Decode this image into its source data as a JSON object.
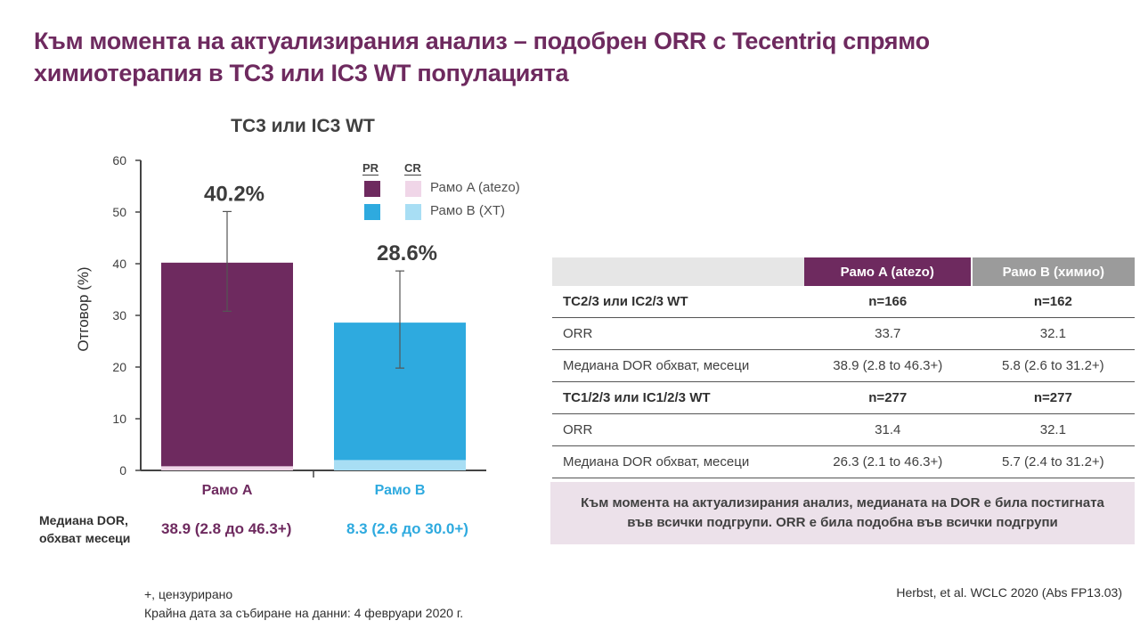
{
  "title": "Към момента на актуализирания анализ – подобрен ORR с Tecentriq спрямо химиотерапия в TC3 или IC3 WT популацията",
  "colors": {
    "armA_pr": "#6e2a5f",
    "armA_cr": "#f0d6e8",
    "armB_pr": "#2eaadf",
    "armB_cr": "#a8def4"
  },
  "chart_data": {
    "type": "bar",
    "title": "TC3 или IC3 WT",
    "ylabel": "Отговор (%)",
    "ylim": [
      0,
      60
    ],
    "yticks": [
      "0",
      "10",
      "20",
      "30",
      "40",
      "50",
      "60"
    ],
    "categories": [
      "Рамо A",
      "Рамо B"
    ],
    "series": [
      {
        "name": "PR",
        "values": [
          39.4,
          26.6
        ]
      },
      {
        "name": "CR",
        "values": [
          0.8,
          2.0
        ]
      }
    ],
    "totals": [
      40.2,
      28.6
    ],
    "total_labels": [
      "40.2%",
      "28.6%"
    ],
    "error_bars": [
      [
        30.8,
        50.1
      ],
      [
        19.8,
        38.6
      ]
    ],
    "legend": {
      "headers": [
        "PR",
        "CR"
      ],
      "rows": [
        "Рамо A (atezo)",
        "Рамо B (XT)"
      ]
    }
  },
  "dor": {
    "label_line1": "Медиана DOR,",
    "label_line2": "обхват месеци",
    "arm_a": "38.9 (2.8 до 46.3+)",
    "arm_b": "8.3 (2.6 до 30.0+)"
  },
  "table": {
    "header": [
      "",
      "Рамо A (atezo)",
      "Рамо B (химио)"
    ],
    "rows": [
      {
        "bold": true,
        "cells": [
          "TC2/3 или IC2/3 WT",
          "n=166",
          "n=162"
        ]
      },
      {
        "bold": false,
        "cells": [
          "ORR",
          "33.7",
          "32.1"
        ]
      },
      {
        "bold": false,
        "cells": [
          "Медиана DOR  обхват, месеци",
          "38.9  (2.8 to 46.3+)",
          "5.8 (2.6 to 31.2+)"
        ]
      },
      {
        "bold": true,
        "cells": [
          "TC1/2/3 или IC1/2/3 WT",
          "n=277",
          "n=277"
        ]
      },
      {
        "bold": false,
        "cells": [
          "ORR",
          "31.4",
          "32.1"
        ]
      },
      {
        "bold": false,
        "cells": [
          "Медиана DOR  обхват, месеци",
          "26.3  (2.1 to 46.3+)",
          "5.7 (2.4 to 31.2+)"
        ]
      }
    ]
  },
  "note": {
    "line1": "Към момента на актуализирания анализ, медианата на DOR е била постигната",
    "line2": "във всички подгрупи. ORR е била подобна във всички подгрупи"
  },
  "footnote": {
    "line1": "+, цензурирано",
    "line2": "Крайна дата за събиране на данни: 4 февруари 2020 г."
  },
  "citation": "Herbst, et al. WCLC 2020 (Abs FP13.03)"
}
